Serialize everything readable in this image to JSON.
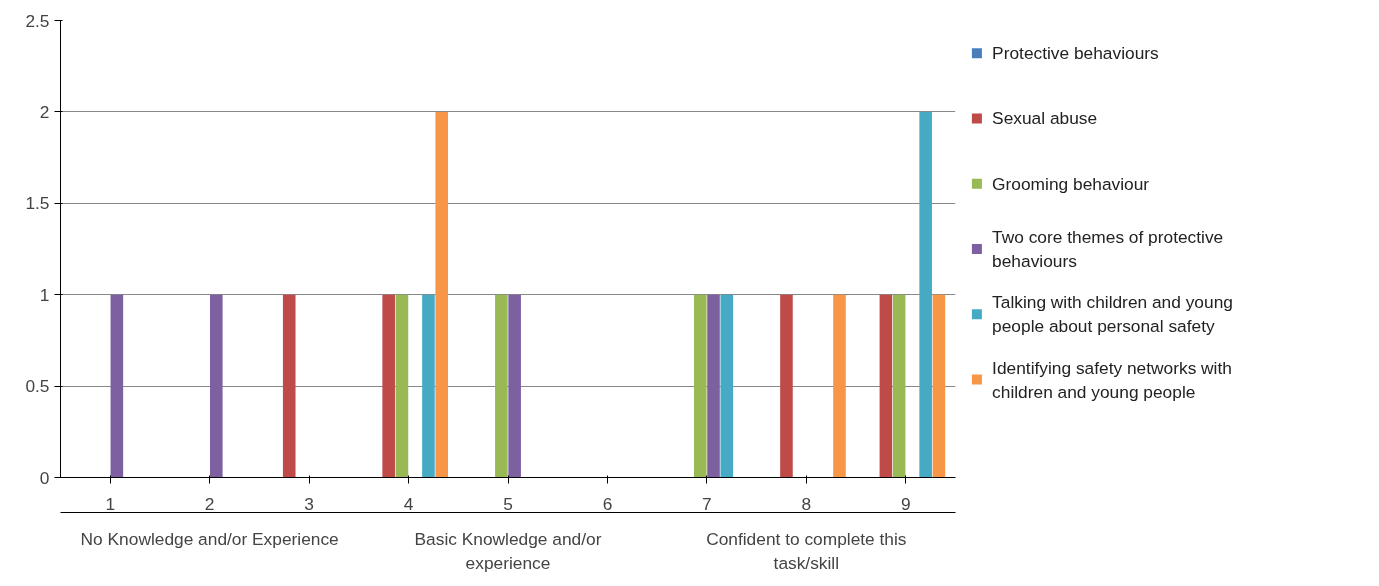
{
  "chart_data": {
    "type": "bar",
    "categories": [
      "1",
      "2",
      "3",
      "4",
      "5",
      "6",
      "7",
      "8",
      "9"
    ],
    "series": [
      {
        "name": "Protective behaviours",
        "color": "#4a7ebb",
        "values": [
          0,
          0,
          0,
          0,
          0,
          0,
          0,
          0,
          0
        ]
      },
      {
        "name": "Sexual abuse",
        "color": "#be4b48",
        "values": [
          0,
          0,
          1,
          1,
          0,
          0,
          0,
          1,
          1
        ]
      },
      {
        "name": "Grooming behaviour",
        "color": "#98b954",
        "values": [
          0,
          0,
          0,
          1,
          1,
          0,
          1,
          0,
          1
        ]
      },
      {
        "name": "Two core themes of protective behaviours",
        "color": "#7d60a0",
        "values": [
          1,
          1,
          0,
          0,
          1,
          0,
          1,
          0,
          0
        ]
      },
      {
        "name": "Talking with children and young people about personal safety",
        "color": "#46aac5",
        "values": [
          0,
          0,
          0,
          1,
          0,
          0,
          1,
          0,
          2
        ]
      },
      {
        "name": "Identifying safety networks with children and young people",
        "color": "#f79646",
        "values": [
          0,
          0,
          0,
          2,
          0,
          0,
          0,
          1,
          1
        ]
      }
    ],
    "annotations": [
      "No Knowledge and/or Experience",
      "Basic Knowledge and/or experience",
      "Confident to complete this task/skill"
    ],
    "ylim": [
      0,
      2.5
    ],
    "yticks": [
      0,
      0.5,
      1,
      1.5,
      2,
      2.5
    ],
    "grid": "y",
    "legend": "right"
  }
}
